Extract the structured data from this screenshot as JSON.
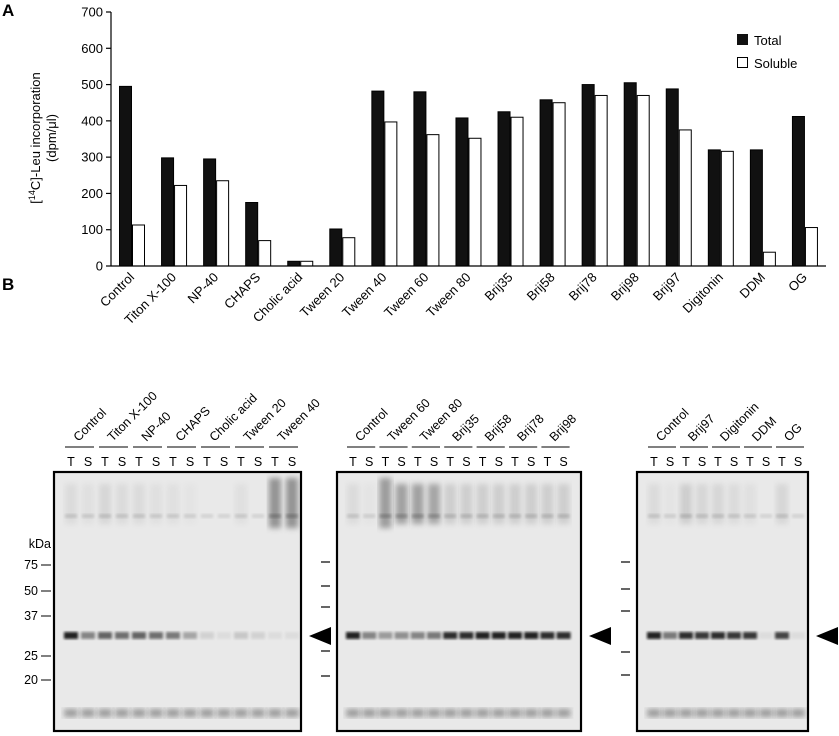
{
  "panel_a": {
    "letter": "A"
  },
  "panel_b": {
    "letter": "B",
    "kda_label": "kDa",
    "markers": [
      "75",
      "50",
      "37",
      "25",
      "20"
    ],
    "gels": [
      {
        "lanes_header": [
          "Control",
          "Titon X-100",
          "NP-40",
          "CHAPS",
          "Cholic acid",
          "Tween 20",
          "Tween 40"
        ],
        "ts": [
          "T",
          "S",
          "T",
          "S",
          "T",
          "S",
          "T",
          "S",
          "T",
          "S",
          "T",
          "S",
          "T",
          "S"
        ]
      },
      {
        "lanes_header": [
          "Control",
          "Tween 60",
          "Tween 80",
          "Brij35",
          "Brij58",
          "Brij78",
          "Brij98"
        ],
        "ts": [
          "T",
          "S",
          "T",
          "S",
          "T",
          "S",
          "T",
          "S",
          "T",
          "S",
          "T",
          "S",
          "T",
          "S"
        ]
      },
      {
        "lanes_header": [
          "Control",
          "Brij97",
          "Digitonin",
          "DDM",
          "OG"
        ],
        "ts": [
          "T",
          "S",
          "T",
          "S",
          "T",
          "S",
          "T",
          "S",
          "T",
          "S"
        ]
      }
    ]
  },
  "chart_data": {
    "type": "bar",
    "title": "",
    "xlabel": "",
    "ylabel_line1": "[14C]-Leu incorporation",
    "ylabel_line2": "(dpm/μl)",
    "ylim": [
      0,
      700
    ],
    "yticks": [
      0,
      100,
      200,
      300,
      400,
      500,
      600,
      700
    ],
    "grid": false,
    "legend_position": "top-right",
    "categories": [
      "Control",
      "Titon X-100",
      "NP-40",
      "CHAPS",
      "Cholic acid",
      "Tween 20",
      "Tween 40",
      "Tween 60",
      "Tween 80",
      "Brij35",
      "Brij58",
      "Brij78",
      "Brij98",
      "Brij97",
      "Digitonin",
      "DDM",
      "OG"
    ],
    "series": [
      {
        "name": "Total",
        "color": "#111111",
        "values": [
          495,
          298,
          295,
          175,
          13,
          102,
          482,
          480,
          408,
          425,
          458,
          500,
          505,
          488,
          320,
          320,
          412
        ]
      },
      {
        "name": "Soluble",
        "color": "#ffffff",
        "values": [
          113,
          222,
          235,
          70,
          13,
          78,
          397,
          362,
          352,
          410,
          450,
          470,
          470,
          375,
          316,
          38,
          106
        ]
      }
    ]
  }
}
